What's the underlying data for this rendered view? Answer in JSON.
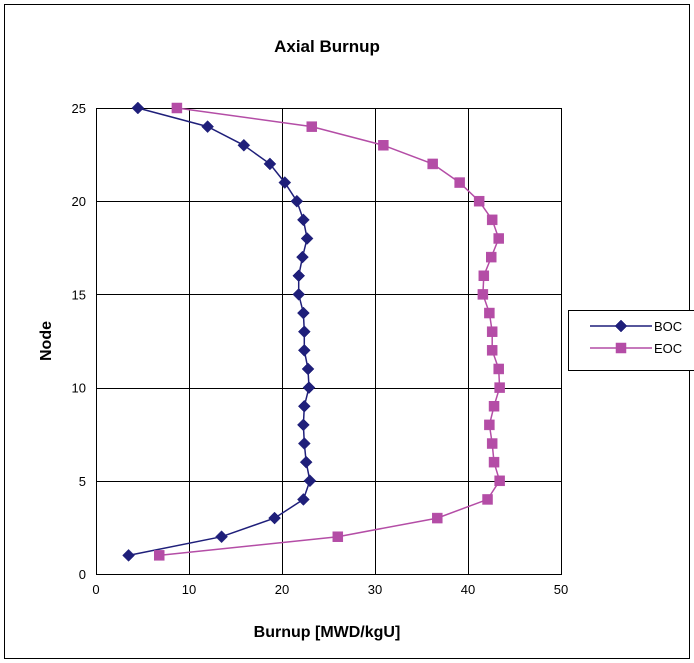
{
  "chart_data": {
    "type": "line",
    "title": "Axial Burnup",
    "xlabel": "Burnup [MWD/kgU]",
    "ylabel": "Node",
    "xlim": [
      0,
      50
    ],
    "ylim": [
      0,
      25
    ],
    "xticks": [
      0,
      10,
      20,
      30,
      40,
      50
    ],
    "yticks": [
      0,
      5,
      10,
      15,
      20,
      25
    ],
    "grid": true,
    "legend_position": "right",
    "series": [
      {
        "name": "BOC",
        "color": "#1f1f7a",
        "marker": "diamond",
        "points": [
          [
            3.5,
            1
          ],
          [
            13.5,
            2
          ],
          [
            19.2,
            3
          ],
          [
            22.3,
            4
          ],
          [
            23.0,
            5
          ],
          [
            22.6,
            6
          ],
          [
            22.4,
            7
          ],
          [
            22.3,
            8
          ],
          [
            22.4,
            9
          ],
          [
            22.9,
            10
          ],
          [
            22.8,
            11
          ],
          [
            22.4,
            12
          ],
          [
            22.4,
            13
          ],
          [
            22.3,
            14
          ],
          [
            21.8,
            15
          ],
          [
            21.8,
            16
          ],
          [
            22.2,
            17
          ],
          [
            22.7,
            18
          ],
          [
            22.3,
            19
          ],
          [
            21.6,
            20
          ],
          [
            20.3,
            21
          ],
          [
            18.7,
            22
          ],
          [
            15.9,
            23
          ],
          [
            12.0,
            24
          ],
          [
            4.5,
            25
          ]
        ]
      },
      {
        "name": "EOC",
        "color": "#b44da6",
        "marker": "square",
        "points": [
          [
            6.8,
            1
          ],
          [
            26.0,
            2
          ],
          [
            36.7,
            3
          ],
          [
            42.1,
            4
          ],
          [
            43.4,
            5
          ],
          [
            42.8,
            6
          ],
          [
            42.6,
            7
          ],
          [
            42.3,
            8
          ],
          [
            42.8,
            9
          ],
          [
            43.4,
            10
          ],
          [
            43.3,
            11
          ],
          [
            42.6,
            12
          ],
          [
            42.6,
            13
          ],
          [
            42.3,
            14
          ],
          [
            41.6,
            15
          ],
          [
            41.7,
            16
          ],
          [
            42.5,
            17
          ],
          [
            43.3,
            18
          ],
          [
            42.6,
            19
          ],
          [
            41.2,
            20
          ],
          [
            39.1,
            21
          ],
          [
            36.2,
            22
          ],
          [
            30.9,
            23
          ],
          [
            23.2,
            24
          ],
          [
            8.7,
            25
          ]
        ]
      }
    ]
  }
}
